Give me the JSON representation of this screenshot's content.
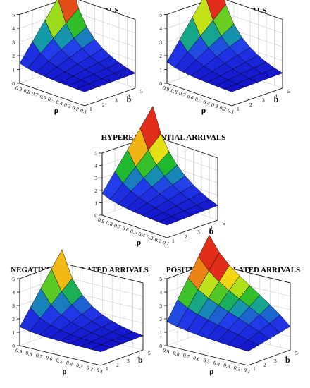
{
  "chart_data": [
    {
      "type": "surface",
      "title": "ERLANG ARRIVALS",
      "xlabel": "ρ",
      "ylabel": "b",
      "x_ticks": [
        "0.9",
        "0.8",
        "0.7",
        "0.6",
        "0.5",
        "0.4",
        "0.3",
        "0.2",
        "0.1"
      ],
      "y_ticks": [
        "1",
        "2",
        "3",
        "4",
        "5"
      ],
      "z_ticks": [
        "0",
        "1",
        "2",
        "3",
        "4",
        "5"
      ],
      "zlim": [
        0,
        5
      ],
      "rho": [
        0.1,
        0.2,
        0.3,
        0.4,
        0.5,
        0.6,
        0.7,
        0.8,
        0.9
      ],
      "b": [
        1,
        2,
        3,
        4,
        5
      ],
      "values": [
        [
          1.01,
          1.02,
          1.04,
          1.06,
          1.09,
          1.13,
          1.19,
          1.28,
          1.45
        ],
        [
          1.03,
          1.08,
          1.14,
          1.22,
          1.33,
          1.48,
          1.7,
          2.05,
          2.7
        ],
        [
          1.05,
          1.13,
          1.24,
          1.38,
          1.57,
          1.83,
          2.21,
          2.82,
          3.95
        ],
        [
          1.07,
          1.19,
          1.35,
          1.55,
          1.81,
          2.18,
          2.72,
          3.59,
          5.2
        ],
        [
          1.09,
          1.25,
          1.45,
          1.71,
          2.05,
          2.53,
          3.23,
          4.36,
          6.45
        ]
      ]
    },
    {
      "type": "surface",
      "title": "POISSON ARRIVALS",
      "xlabel": "ρ",
      "ylabel": "b",
      "x_ticks": [
        "0.9",
        "0.8",
        "0.7",
        "0.6",
        "0.5",
        "0.4",
        "0.3",
        "0.2",
        "0.1"
      ],
      "y_ticks": [
        "1",
        "2",
        "3",
        "4",
        "5"
      ],
      "z_ticks": [
        "0",
        "1",
        "2",
        "3",
        "4",
        "5"
      ],
      "zlim": [
        0,
        5
      ],
      "rho": [
        0.1,
        0.2,
        0.3,
        0.4,
        0.5,
        0.6,
        0.7,
        0.8,
        0.9
      ],
      "b": [
        1,
        2,
        3,
        4,
        5
      ],
      "values": [
        [
          1.01,
          1.02,
          1.04,
          1.07,
          1.1,
          1.15,
          1.22,
          1.33,
          1.55
        ],
        [
          1.03,
          1.08,
          1.15,
          1.24,
          1.36,
          1.53,
          1.78,
          2.16,
          2.85
        ],
        [
          1.06,
          1.14,
          1.26,
          1.41,
          1.62,
          1.91,
          2.33,
          2.99,
          4.15
        ],
        [
          1.08,
          1.2,
          1.37,
          1.59,
          1.88,
          2.29,
          2.88,
          3.82,
          5.45
        ],
        [
          1.1,
          1.26,
          1.48,
          1.76,
          2.14,
          2.67,
          3.43,
          4.65,
          6.75
        ]
      ]
    },
    {
      "type": "surface",
      "title": "HYPEREXPONENTIAL ARRIVALS",
      "xlabel": "ρ",
      "ylabel": "b",
      "x_ticks": [
        "0.9",
        "0.8",
        "0.7",
        "0.6",
        "0.5",
        "0.4",
        "0.3",
        "0.2",
        "0.1"
      ],
      "y_ticks": [
        "1",
        "2",
        "3",
        "4",
        "5"
      ],
      "z_ticks": [
        "0",
        "1",
        "2",
        "3",
        "4",
        "5"
      ],
      "zlim": [
        0,
        5
      ],
      "rho": [
        0.1,
        0.2,
        0.3,
        0.4,
        0.5,
        0.6,
        0.7,
        0.8,
        0.9
      ],
      "b": [
        1,
        2,
        3,
        4,
        5
      ],
      "values": [
        [
          1.02,
          1.04,
          1.07,
          1.11,
          1.16,
          1.23,
          1.33,
          1.48,
          1.75
        ],
        [
          1.06,
          1.14,
          1.24,
          1.37,
          1.53,
          1.74,
          2.03,
          2.45,
          3.15
        ],
        [
          1.1,
          1.24,
          1.41,
          1.63,
          1.9,
          2.25,
          2.73,
          3.42,
          4.55
        ],
        [
          1.14,
          1.34,
          1.58,
          1.89,
          2.27,
          2.76,
          3.43,
          4.39,
          5.95
        ],
        [
          1.18,
          1.44,
          1.75,
          2.15,
          2.64,
          3.27,
          4.13,
          5.36,
          7.35
        ]
      ]
    },
    {
      "type": "surface",
      "title": "NEGATIVE CORRELATED ARRIVALS",
      "xlabel": "ρ",
      "ylabel": "b",
      "x_ticks": [
        "0.9",
        "0.8",
        "0.7",
        "0.6",
        "0.5",
        "0.4",
        "0.3",
        "0.2",
        "0.1"
      ],
      "y_ticks": [
        "1",
        "2",
        "3",
        "4",
        "5"
      ],
      "z_ticks": [
        "0",
        "1",
        "2",
        "3",
        "4",
        "5"
      ],
      "zlim": [
        0,
        5
      ],
      "rho": [
        0.1,
        0.2,
        0.3,
        0.4,
        0.5,
        0.6,
        0.7,
        0.8,
        0.9
      ],
      "b": [
        1,
        2,
        3,
        4,
        5
      ],
      "values": [
        [
          1.01,
          1.02,
          1.03,
          1.05,
          1.08,
          1.11,
          1.16,
          1.25,
          1.4
        ],
        [
          1.02,
          1.06,
          1.11,
          1.18,
          1.28,
          1.42,
          1.62,
          1.95,
          2.55
        ],
        [
          1.04,
          1.1,
          1.19,
          1.31,
          1.48,
          1.72,
          2.08,
          2.65,
          3.7
        ],
        [
          1.05,
          1.14,
          1.27,
          1.44,
          1.68,
          2.02,
          2.54,
          3.35,
          4.85
        ],
        [
          1.07,
          1.18,
          1.35,
          1.57,
          1.88,
          2.32,
          3.0,
          4.05,
          6.0
        ]
      ]
    },
    {
      "type": "surface",
      "title": "POSITIVE CORRELATED ARRIVALS",
      "xlabel": "ρ",
      "ylabel": "b",
      "x_ticks": [
        "0.9",
        "0.8",
        "0.7",
        "0.6",
        "0.5",
        "0.4",
        "0.3",
        "0.2",
        "0.1"
      ],
      "y_ticks": [
        "1",
        "2",
        "3",
        "4",
        "5"
      ],
      "z_ticks": [
        "0",
        "1",
        "2",
        "3",
        "4",
        "5"
      ],
      "zlim": [
        0,
        5
      ],
      "rho": [
        0.1,
        0.2,
        0.3,
        0.4,
        0.5,
        0.6,
        0.7,
        0.8,
        0.9
      ],
      "b": [
        1,
        2,
        3,
        4,
        5
      ],
      "values": [
        [
          1.05,
          1.1,
          1.16,
          1.22,
          1.29,
          1.37,
          1.47,
          1.6,
          1.8
        ],
        [
          1.22,
          1.43,
          1.62,
          1.8,
          1.98,
          2.18,
          2.4,
          2.7,
          3.15
        ],
        [
          1.4,
          1.76,
          2.08,
          2.38,
          2.68,
          2.99,
          3.34,
          3.79,
          4.45
        ],
        [
          1.57,
          2.09,
          2.54,
          2.96,
          3.37,
          3.8,
          4.27,
          4.89,
          5.8
        ],
        [
          1.75,
          2.42,
          3.0,
          3.54,
          4.07,
          4.61,
          5.21,
          5.98,
          7.1
        ]
      ]
    }
  ]
}
